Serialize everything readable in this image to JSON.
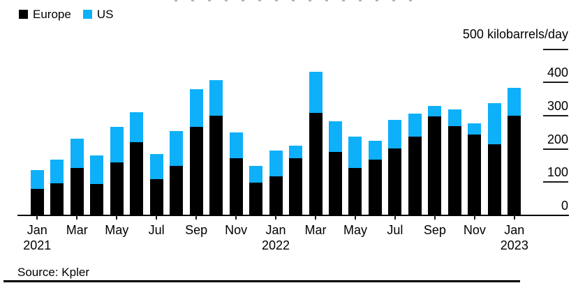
{
  "legend": {
    "items": [
      {
        "label": "Europe",
        "color": "#000000"
      },
      {
        "label": "US",
        "color": "#0db0f9"
      }
    ]
  },
  "axis": {
    "unit_label": "500 kilobarrels/day"
  },
  "footer": {
    "source": "Source: Kpler"
  },
  "chart_data": {
    "type": "bar",
    "stacked": true,
    "unit": "kilobarrels/day",
    "legend_position": "top-left",
    "y_axis_side": "right",
    "grid": false,
    "ylim": [
      0,
      500
    ],
    "yticks": [
      0,
      100,
      200,
      300,
      400,
      500
    ],
    "y_top_tick_label": "500 kilobarrels/day",
    "categories": [
      "Jan 2021",
      "Feb 2021",
      "Mar 2021",
      "Apr 2021",
      "May 2021",
      "Jun 2021",
      "Jul 2021",
      "Aug 2021",
      "Sep 2021",
      "Oct 2021",
      "Nov 2021",
      "Dec 2021",
      "Jan 2022",
      "Feb 2022",
      "Mar 2022",
      "Apr 2022",
      "May 2022",
      "Jun 2022",
      "Jul 2022",
      "Aug 2022",
      "Sep 2022",
      "Oct 2022",
      "Nov 2022",
      "Dec 2022",
      "Jan 2023"
    ],
    "series": [
      {
        "name": "Europe",
        "color": "#000000",
        "values": [
          78,
          94,
          141,
          93,
          157,
          218,
          106,
          146,
          265,
          297,
          170,
          96,
          115,
          169,
          307,
          188,
          141,
          166,
          200,
          235,
          296,
          267,
          242,
          212,
          299
        ]
      },
      {
        "name": "US",
        "color": "#0db0f9",
        "values": [
          57,
          71,
          87,
          86,
          108,
          91,
          76,
          105,
          112,
          108,
          77,
          50,
          78,
          38,
          123,
          94,
          95,
          57,
          85,
          70,
          32,
          50,
          33,
          123,
          82
        ]
      }
    ],
    "totals": [
      135,
      165,
      228,
      179,
      265,
      309,
      182,
      251,
      377,
      405,
      247,
      146,
      193,
      207,
      430,
      282,
      236,
      223,
      285,
      305,
      328,
      317,
      275,
      335,
      381
    ],
    "xticks": [
      {
        "label": "Jan",
        "year": "2021",
        "index": 0
      },
      {
        "label": "Mar",
        "index": 2
      },
      {
        "label": "May",
        "index": 4
      },
      {
        "label": "Jul",
        "index": 6
      },
      {
        "label": "Sep",
        "index": 8
      },
      {
        "label": "Nov",
        "index": 10
      },
      {
        "label": "Jan",
        "year": "2022",
        "index": 12
      },
      {
        "label": "Mar",
        "index": 14
      },
      {
        "label": "May",
        "index": 16
      },
      {
        "label": "Jul",
        "index": 18
      },
      {
        "label": "Sep",
        "index": 20
      },
      {
        "label": "Nov",
        "index": 22
      },
      {
        "label": "Jan",
        "year": "2023",
        "index": 24
      }
    ],
    "source": "Source: Kpler"
  }
}
